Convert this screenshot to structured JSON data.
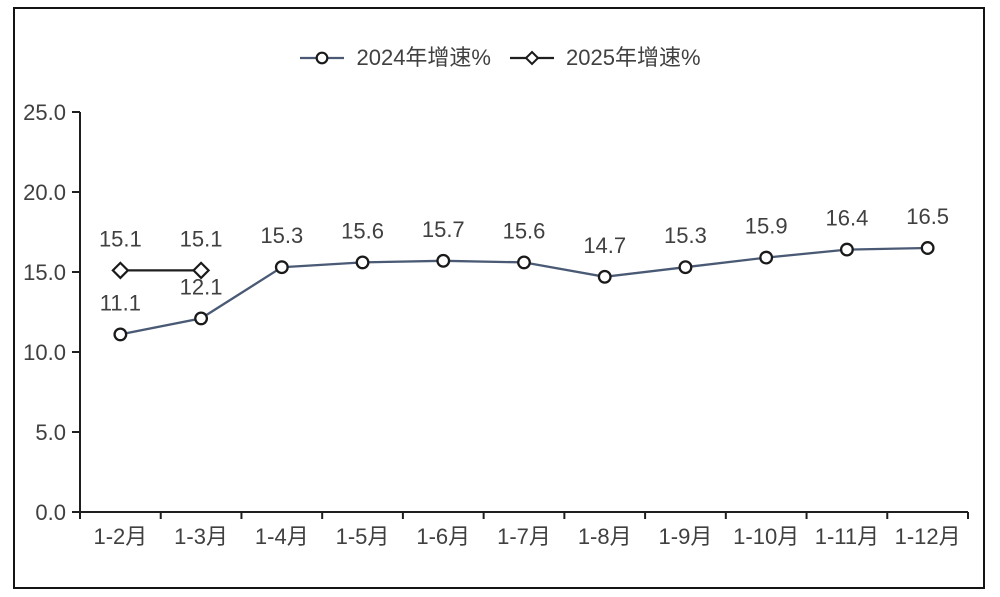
{
  "chart_data": {
    "type": "line",
    "categories": [
      "1-2月",
      "1-3月",
      "1-4月",
      "1-5月",
      "1-6月",
      "1-7月",
      "1-8月",
      "1-9月",
      "1-10月",
      "1-11月",
      "1-12月"
    ],
    "series": [
      {
        "name": "2024年增速%",
        "marker": "circle",
        "line_color": "#4A5A75",
        "marker_stroke": "#1a1a1a",
        "values": [
          11.1,
          12.1,
          15.3,
          15.6,
          15.7,
          15.6,
          14.7,
          15.3,
          15.9,
          16.4,
          16.5
        ]
      },
      {
        "name": "2025年增速%",
        "marker": "diamond",
        "line_color": "#1f1f1f",
        "marker_stroke": "#1a1a1a",
        "values": [
          15.1,
          15.1
        ]
      }
    ],
    "ylim": [
      0,
      25
    ],
    "yticks": [
      {
        "value": 0,
        "label": "0.0"
      },
      {
        "value": 5,
        "label": "5.0"
      },
      {
        "value": 10,
        "label": "10.0"
      },
      {
        "value": 15,
        "label": "15.0"
      },
      {
        "value": 20,
        "label": "20.0"
      },
      {
        "value": 25,
        "label": "25.0"
      }
    ],
    "grid": false,
    "legend_position": "top",
    "data_labels": true
  },
  "colors": {
    "background": "#ffffff",
    "frame_border": "#141414",
    "axis": "#1f1f1f",
    "text": "#404040",
    "marker_fill": "#ffffff"
  }
}
